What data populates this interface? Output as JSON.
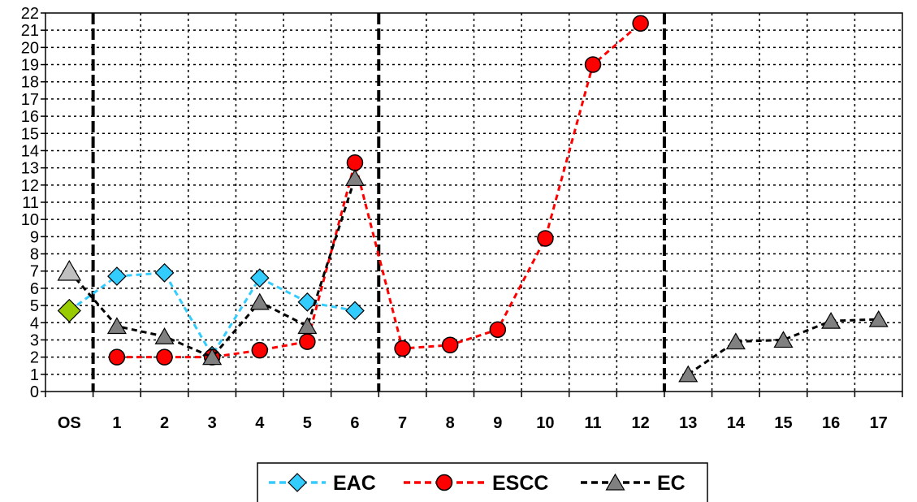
{
  "chart_data": {
    "type": "line",
    "categories": [
      "OS",
      "1",
      "2",
      "3",
      "4",
      "5",
      "6",
      "7",
      "8",
      "9",
      "10",
      "11",
      "12",
      "13",
      "14",
      "15",
      "16",
      "17"
    ],
    "y_ticks": [
      "0",
      "1",
      "2",
      "3",
      "4",
      "5",
      "6",
      "7",
      "8",
      "9",
      "10",
      "11",
      "12",
      "13",
      "14",
      "15",
      "16",
      "17",
      "18",
      "19",
      "20",
      "21",
      "22"
    ],
    "ylim": [
      0,
      22
    ],
    "grid": true,
    "legend_position": "bottom-center",
    "group_separators_after": [
      "OS",
      "6",
      "12"
    ],
    "series": [
      {
        "name": "EAC",
        "color": "#33ccff",
        "marker": "diamond",
        "points": [
          {
            "x": "OS",
            "y": 4.7,
            "color": "#99cc00"
          },
          {
            "x": "1",
            "y": 6.7
          },
          {
            "x": "2",
            "y": 6.9
          },
          {
            "x": "3",
            "y": 2.1
          },
          {
            "x": "4",
            "y": 6.6
          },
          {
            "x": "5",
            "y": 5.2
          },
          {
            "x": "6",
            "y": 4.7
          }
        ]
      },
      {
        "name": "ESCC",
        "color": "#ff0000",
        "marker": "circle",
        "points": [
          {
            "x": "1",
            "y": 2.0
          },
          {
            "x": "2",
            "y": 2.0
          },
          {
            "x": "3",
            "y": 2.0
          },
          {
            "x": "4",
            "y": 2.4
          },
          {
            "x": "5",
            "y": 2.9
          },
          {
            "x": "6",
            "y": 13.3
          },
          {
            "x": "7",
            "y": 2.5
          },
          {
            "x": "8",
            "y": 2.7
          },
          {
            "x": "9",
            "y": 3.6
          },
          {
            "x": "10",
            "y": 8.9
          },
          {
            "x": "11",
            "y": 19.0
          },
          {
            "x": "12",
            "y": 21.4
          }
        ]
      },
      {
        "name": "EC",
        "color": "#808080",
        "marker": "triangle",
        "points": [
          {
            "x": "OS",
            "y": 7.0,
            "color": "#c0c0c0"
          },
          {
            "x": "1",
            "y": 3.8
          },
          {
            "x": "2",
            "y": 3.2
          },
          {
            "x": "3",
            "y": 2.0
          },
          {
            "x": "4",
            "y": 5.2
          },
          {
            "x": "5",
            "y": 3.8
          },
          {
            "x": "6",
            "y": 12.4
          },
          {
            "x": "13",
            "y": 1.0
          },
          {
            "x": "14",
            "y": 2.9
          },
          {
            "x": "15",
            "y": 3.0
          },
          {
            "x": "16",
            "y": 4.1
          },
          {
            "x": "17",
            "y": 4.2
          }
        ]
      }
    ]
  }
}
